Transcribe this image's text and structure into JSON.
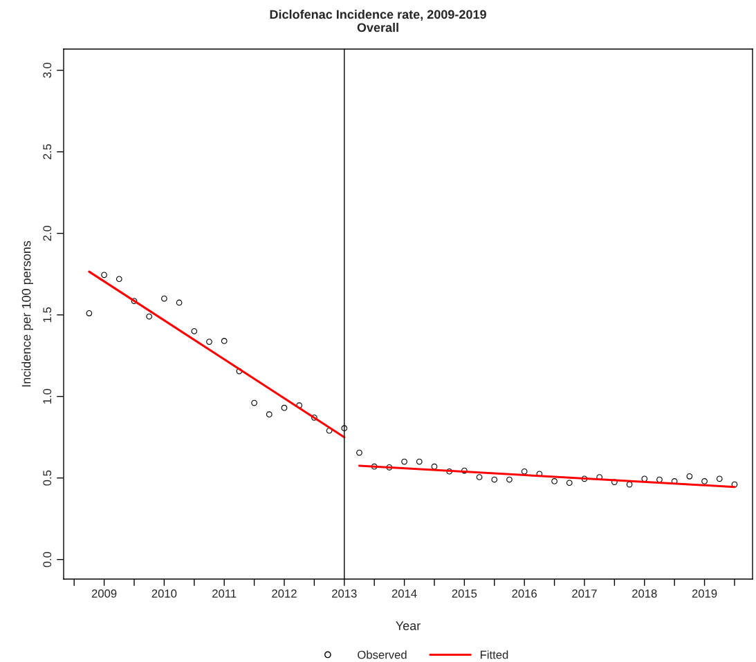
{
  "chart_data": {
    "type": "scatter",
    "title": "Diclofenac Incidence rate, 2009-2019",
    "subtitle": "Overall",
    "xlabel": "Year",
    "ylabel": "Incidence per 100 persons",
    "xlim": [
      2008.325,
      2019.8
    ],
    "ylim": [
      -0.12,
      3.13
    ],
    "xticks": [
      {
        "value": 2008.5,
        "label": null
      },
      2009,
      {
        "value": 2009.5,
        "label": null
      },
      2010,
      {
        "value": 2010.5,
        "label": null
      },
      2011,
      {
        "value": 2011.5,
        "label": null
      },
      2012,
      {
        "value": 2012.5,
        "label": null
      },
      2013,
      {
        "value": 2013.5,
        "label": null
      },
      2014,
      {
        "value": 2014.5,
        "label": null
      },
      2015,
      {
        "value": 2015.5,
        "label": null
      },
      2016,
      {
        "value": 2016.5,
        "label": null
      },
      2017,
      {
        "value": 2017.5,
        "label": null
      },
      2018,
      {
        "value": 2018.5,
        "label": null
      },
      2019,
      {
        "value": 2019.5,
        "label": null
      }
    ],
    "yticks": [
      {
        "value": 0,
        "label": "0.0"
      },
      {
        "value": 0.5,
        "label": "0.5"
      },
      {
        "value": 1,
        "label": "1.0"
      },
      {
        "value": 1.5,
        "label": "1.5"
      },
      {
        "value": 2,
        "label": "2.0"
      },
      {
        "value": 2.5,
        "label": "2.5"
      },
      {
        "value": 3,
        "label": "3.0"
      }
    ],
    "grid": false,
    "legend": "bottom",
    "ref_lines": [
      {
        "axis": "x",
        "value": 2013,
        "color": "#000000"
      }
    ],
    "series": [
      {
        "name": "Observed",
        "marker": "circle",
        "color": "#000000",
        "x": [
          2008.75,
          2009,
          2009.25,
          2009.5,
          2009.75,
          2010,
          2010.25,
          2010.5,
          2010.75,
          2011,
          2011.25,
          2011.5,
          2011.75,
          2012,
          2012.25,
          2012.5,
          2012.75,
          2013,
          2013.25,
          2013.5,
          2013.75,
          2014,
          2014.25,
          2014.5,
          2014.75,
          2015,
          2015.25,
          2015.5,
          2015.75,
          2016,
          2016.25,
          2016.5,
          2016.75,
          2017,
          2017.25,
          2017.5,
          2017.75,
          2018,
          2018.25,
          2018.5,
          2018.75,
          2019,
          2019.25,
          2019.5
        ],
        "values": [
          1.51,
          1.745,
          1.72,
          1.585,
          1.49,
          1.6,
          1.575,
          1.4,
          1.335,
          1.34,
          1.155,
          0.96,
          0.89,
          0.93,
          0.945,
          0.87,
          0.79,
          0.805,
          0.655,
          0.57,
          0.565,
          0.6,
          0.6,
          0.57,
          0.54,
          0.545,
          0.505,
          0.49,
          0.49,
          0.54,
          0.525,
          0.48,
          0.47,
          0.495,
          0.505,
          0.475,
          0.46,
          0.495,
          0.49,
          0.48,
          0.51,
          0.48,
          0.495,
          0.46
        ]
      },
      {
        "name": "Fitted",
        "type": "line",
        "color": "#ff0000",
        "x": [
          2008.75,
          2013
        ],
        "values": [
          1.765,
          0.75
        ]
      },
      {
        "type": "line",
        "color": "#ff0000",
        "x": [
          2013.25,
          2019.5
        ],
        "values": [
          0.575,
          0.445
        ]
      }
    ]
  }
}
